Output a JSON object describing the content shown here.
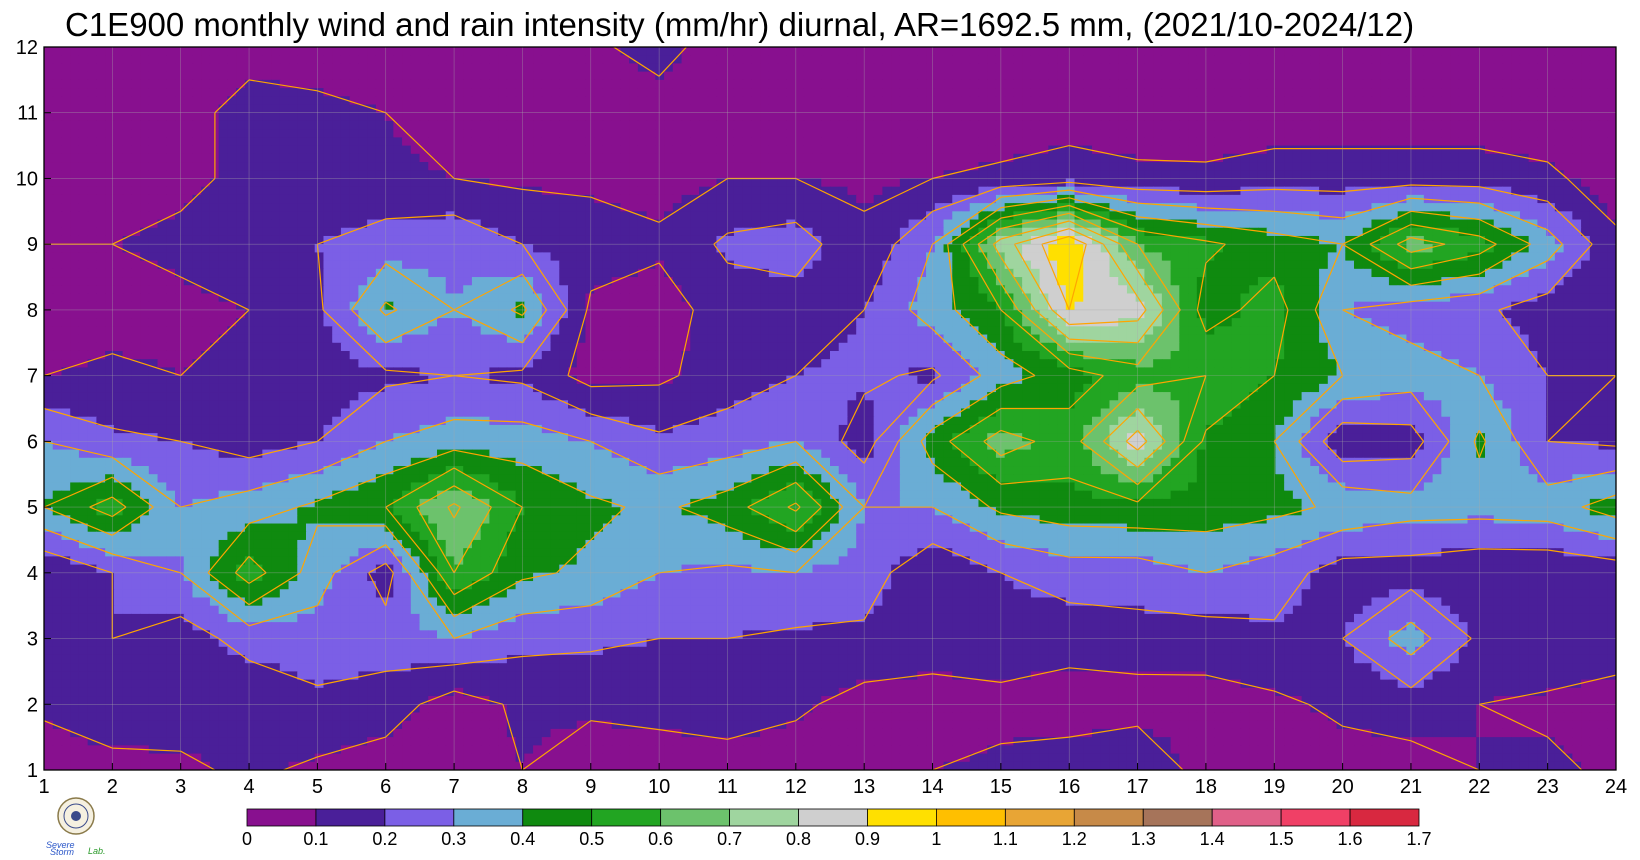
{
  "chart_data": {
    "type": "heatmap",
    "subtype": "filled-contour",
    "title": "C1E900 monthly wind and rain intensity (mm/hr) diurnal, AR=1692.5 mm, (2021/10-2024/12)",
    "xlabel": "",
    "ylabel": "",
    "x_ticks": [
      "1",
      "2",
      "3",
      "4",
      "5",
      "6",
      "7",
      "8",
      "9",
      "10",
      "11",
      "12",
      "13",
      "14",
      "15",
      "16",
      "17",
      "18",
      "19",
      "20",
      "21",
      "22",
      "23",
      "24"
    ],
    "y_ticks": [
      "1",
      "2",
      "3",
      "4",
      "5",
      "6",
      "7",
      "8",
      "9",
      "10",
      "11",
      "12"
    ],
    "xlim": [
      1,
      24
    ],
    "ylim": [
      1,
      12
    ],
    "grid": true,
    "colorbar": {
      "placement": "bottom",
      "levels": [
        "0",
        "0.1",
        "0.2",
        "0.3",
        "0.4",
        "0.5",
        "0.6",
        "0.7",
        "0.8",
        "0.9",
        "1",
        "1.1",
        "1.2",
        "1.3",
        "1.4",
        "1.5",
        "1.6",
        "1.7"
      ],
      "colors": [
        "#88108f",
        "#4a1f99",
        "#7b5fe6",
        "#6aadd5",
        "#0f8a0f",
        "#22a522",
        "#6cc26c",
        "#9fd59f",
        "#cfcfcf",
        "#ffe000",
        "#ffbf00",
        "#e8a535",
        "#c78a48",
        "#a6745a",
        "#e06088",
        "#f04066",
        "#d82840"
      ]
    },
    "contour_line_color": "#ffa500",
    "hours": [
      1,
      2,
      3,
      4,
      5,
      6,
      7,
      8,
      9,
      10,
      11,
      12,
      13,
      14,
      15,
      16,
      17,
      18,
      19,
      20,
      21,
      22,
      23,
      24
    ],
    "months": [
      1,
      2,
      3,
      4,
      5,
      6,
      7,
      8,
      9,
      10,
      11,
      12
    ],
    "values": [
      [
        0.04,
        0.06,
        0.08,
        0.12,
        0.08,
        0.05,
        0.04,
        0.1,
        0.04,
        0.02,
        0.03,
        0.04,
        0.06,
        0.1,
        0.12,
        0.15,
        0.2,
        0.05,
        0.04,
        0.06,
        0.06,
        0.1,
        0.12,
        0.08
      ],
      [
        0.12,
        0.18,
        0.15,
        0.12,
        0.18,
        0.15,
        0.05,
        0.12,
        0.12,
        0.15,
        0.18,
        0.12,
        0.06,
        0.04,
        0.07,
        0.05,
        0.05,
        0.06,
        0.08,
        0.12,
        0.15,
        0.1,
        0.08,
        0.06
      ],
      [
        0.12,
        0.2,
        0.15,
        0.24,
        0.25,
        0.25,
        0.3,
        0.23,
        0.22,
        0.2,
        0.2,
        0.18,
        0.18,
        0.17,
        0.16,
        0.14,
        0.16,
        0.15,
        0.18,
        0.2,
        0.35,
        0.18,
        0.18,
        0.15
      ],
      [
        0.1,
        0.2,
        0.3,
        0.55,
        0.35,
        0.15,
        0.6,
        0.42,
        0.38,
        0.3,
        0.28,
        0.3,
        0.25,
        0.12,
        0.2,
        0.25,
        0.25,
        0.3,
        0.25,
        0.15,
        0.15,
        0.12,
        0.12,
        0.14
      ],
      [
        0.4,
        0.55,
        0.3,
        0.35,
        0.42,
        0.5,
        0.72,
        0.5,
        0.42,
        0.38,
        0.45,
        0.62,
        0.3,
        0.3,
        0.42,
        0.46,
        0.47,
        0.46,
        0.43,
        0.38,
        0.34,
        0.34,
        0.35,
        0.45
      ],
      [
        0.3,
        0.22,
        0.2,
        0.15,
        0.2,
        0.3,
        0.35,
        0.35,
        0.3,
        0.22,
        0.25,
        0.3,
        0.15,
        0.45,
        0.65,
        0.55,
        0.85,
        0.48,
        0.4,
        0.12,
        0.15,
        0.42,
        0.2,
        0.18
      ],
      [
        0.1,
        0.12,
        0.1,
        0.12,
        0.15,
        0.18,
        0.2,
        0.18,
        0.06,
        0.08,
        0.15,
        0.2,
        0.22,
        0.18,
        0.35,
        0.45,
        0.55,
        0.6,
        0.5,
        0.4,
        0.35,
        0.3,
        0.2,
        0.2
      ],
      [
        0.03,
        0.06,
        0.08,
        0.1,
        0.18,
        0.42,
        0.3,
        0.42,
        0.08,
        0.05,
        0.15,
        0.15,
        0.2,
        0.35,
        0.5,
        0.9,
        0.85,
        0.45,
        0.55,
        0.3,
        0.25,
        0.22,
        0.15,
        0.1
      ],
      [
        0.1,
        0.1,
        0.12,
        0.15,
        0.2,
        0.25,
        0.28,
        0.2,
        0.15,
        0.12,
        0.22,
        0.25,
        0.12,
        0.3,
        0.75,
        1.0,
        0.6,
        0.52,
        0.45,
        0.4,
        0.65,
        0.55,
        0.35,
        0.12
      ],
      [
        0.05,
        0.06,
        0.08,
        0.12,
        0.14,
        0.12,
        0.1,
        0.08,
        0.08,
        0.06,
        0.1,
        0.1,
        0.08,
        0.1,
        0.12,
        0.15,
        0.12,
        0.12,
        0.15,
        0.15,
        0.15,
        0.15,
        0.12,
        0.05
      ],
      [
        0.04,
        0.05,
        0.06,
        0.14,
        0.12,
        0.1,
        0.05,
        0.05,
        0.04,
        0.05,
        0.04,
        0.04,
        0.04,
        0.04,
        0.04,
        0.05,
        0.05,
        0.04,
        0.04,
        0.04,
        0.04,
        0.04,
        0.04,
        0.04
      ],
      [
        0.04,
        0.04,
        0.04,
        0.06,
        0.06,
        0.04,
        0.04,
        0.04,
        0.08,
        0.14,
        0.04,
        0.04,
        0.04,
        0.04,
        0.04,
        0.04,
        0.04,
        0.1,
        0.04,
        0.04,
        0.04,
        0.04,
        0.04,
        0.04
      ]
    ]
  }
}
